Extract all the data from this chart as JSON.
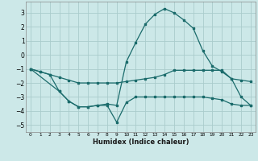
{
  "xlabel": "Humidex (Indice chaleur)",
  "background_color": "#cce8e8",
  "grid_color": "#aacccc",
  "line_color": "#1a6b6b",
  "xlim": [
    -0.5,
    23.5
  ],
  "ylim": [
    -5.5,
    3.8
  ],
  "xticks": [
    0,
    1,
    2,
    3,
    4,
    5,
    6,
    7,
    8,
    9,
    10,
    11,
    12,
    13,
    14,
    15,
    16,
    17,
    18,
    19,
    20,
    21,
    22,
    23
  ],
  "yticks": [
    -5,
    -4,
    -3,
    -2,
    -1,
    0,
    1,
    2,
    3
  ],
  "line1_x": [
    0,
    1,
    2,
    3,
    4,
    5,
    6,
    7,
    8,
    9,
    10,
    11,
    12,
    13,
    14,
    15,
    16,
    17,
    18,
    19,
    20,
    21,
    22,
    23
  ],
  "line1_y": [
    -1.0,
    -1.2,
    -1.4,
    -1.6,
    -1.8,
    -2.0,
    -2.0,
    -2.0,
    -2.0,
    -2.0,
    -1.9,
    -1.8,
    -1.7,
    -1.6,
    -1.4,
    -1.1,
    -1.1,
    -1.1,
    -1.1,
    -1.1,
    -1.1,
    -1.7,
    -1.8,
    -1.9
  ],
  "line2_x": [
    0,
    1,
    2,
    3,
    4,
    5,
    6,
    7,
    8,
    9,
    10,
    11,
    12,
    13,
    14,
    15,
    16,
    17,
    18,
    19,
    20,
    21,
    22,
    23
  ],
  "line2_y": [
    -1.0,
    -1.2,
    -1.4,
    -2.6,
    -3.3,
    -3.7,
    -3.7,
    -3.6,
    -3.6,
    -4.8,
    -3.4,
    -3.0,
    -3.0,
    -3.0,
    -3.0,
    -3.0,
    -3.0,
    -3.0,
    -3.0,
    -3.1,
    -3.2,
    -3.5,
    -3.6,
    -3.6
  ],
  "line3_x": [
    0,
    3,
    4,
    5,
    6,
    7,
    8,
    9,
    10,
    11,
    12,
    13,
    14,
    15,
    16,
    17,
    18,
    19,
    20,
    21,
    22,
    23
  ],
  "line3_y": [
    -1.0,
    -2.6,
    -3.3,
    -3.7,
    -3.7,
    -3.6,
    -3.5,
    -3.6,
    -0.5,
    0.9,
    2.2,
    2.9,
    3.3,
    3.0,
    2.5,
    1.9,
    0.3,
    -0.8,
    -1.2,
    -1.7,
    -3.0,
    -3.6
  ]
}
